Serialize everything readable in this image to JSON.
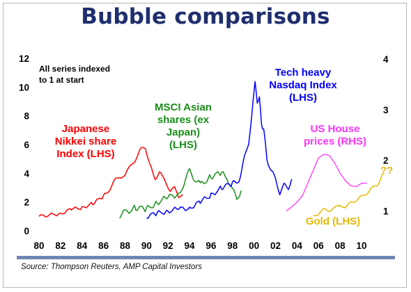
{
  "title": "Bubble comparisons",
  "source": "Source: Thompson Reuters, AMP Capital Investors",
  "colors": {
    "title": "#1f2f6e",
    "nikkei": "#ff0000",
    "msci": "#1a8f1a",
    "nasdaq": "#0000ff",
    "house": "#ff33ff",
    "gold": "#e6b800",
    "rule": "#6f86b5"
  },
  "chart_data": {
    "type": "line",
    "x_ticks": [
      "80",
      "82",
      "84",
      "86",
      "88",
      "90",
      "92",
      "94",
      "96",
      "98",
      "00",
      "02",
      "04",
      "06",
      "08",
      "10"
    ],
    "y_left_ticks": [
      "0",
      "2",
      "4",
      "6",
      "8",
      "10",
      "12"
    ],
    "y_right_ticks": [
      "1",
      "2",
      "3",
      "4"
    ],
    "ylim_left": [
      0,
      12
    ],
    "ylim_right": [
      0.5,
      4
    ],
    "grid": false,
    "note": "All series indexed to 1 at start",
    "question_marks": "??",
    "series": [
      {
        "name": "Japanese Nikkei share Index (LHS)",
        "axis": "left",
        "x": [
          1980,
          1982,
          1983,
          1984,
          1985,
          1986,
          1986.5,
          1987,
          1987.5,
          1988,
          1988.5,
          1989,
          1989.5,
          1989.9,
          1990.3,
          1990.8,
          1991.2,
          1991.7,
          1992.2,
          1992.6,
          1993,
          1993.4
        ],
        "y": [
          1.0,
          1.2,
          1.5,
          1.6,
          1.9,
          2.4,
          2.8,
          3.5,
          3.7,
          3.9,
          4.5,
          5.0,
          5.7,
          5.8,
          4.6,
          3.6,
          4.1,
          3.5,
          2.8,
          3.0,
          2.4,
          2.5
        ]
      },
      {
        "name": "MSCI Asian shares (ex Japan) (LHS)",
        "axis": "left",
        "x": [
          1987.5,
          1988,
          1989,
          1990,
          1991,
          1992,
          1993,
          1993.5,
          1994,
          1994.5,
          1995,
          1996,
          1997,
          1997.5,
          1998,
          1998.4,
          1998.8
        ],
        "y": [
          1.0,
          1.3,
          1.6,
          1.5,
          2.0,
          2.3,
          2.6,
          3.3,
          4.2,
          3.6,
          3.2,
          3.8,
          4.0,
          3.6,
          3.0,
          2.1,
          2.8
        ]
      },
      {
        "name": "Tech heavy Nasdaq Index (LHS)",
        "axis": "left",
        "x": [
          1990,
          1991,
          1992,
          1993,
          1994,
          1995,
          1996,
          1997,
          1998,
          1998.6,
          1999,
          1999.5,
          1999.9,
          2000.1,
          2000.3,
          2000.5,
          2000.7,
          2000.9,
          2001.2,
          2001.6,
          2002,
          2002.4,
          2002.8,
          2003.2,
          2003.5
        ],
        "y": [
          1.0,
          1.2,
          1.4,
          1.5,
          1.6,
          2.0,
          2.5,
          3.0,
          3.3,
          3.5,
          4.8,
          6.0,
          9.0,
          10.3,
          9.0,
          9.2,
          7.5,
          7.0,
          5.0,
          4.2,
          3.6,
          2.6,
          3.2,
          3.0,
          3.6
        ]
      },
      {
        "name": "US House prices (RHS)",
        "axis": "right",
        "x": [
          2003,
          2003.5,
          2004,
          2004.5,
          2005,
          2005.5,
          2006,
          2006.5,
          2007,
          2007.5,
          2008,
          2008.5,
          2009,
          2009.5,
          2010,
          2010.5
        ],
        "y": [
          1.0,
          1.08,
          1.18,
          1.3,
          1.55,
          1.8,
          2.05,
          2.12,
          2.1,
          1.95,
          1.75,
          1.6,
          1.5,
          1.48,
          1.55,
          1.55
        ]
      },
      {
        "name": "Gold (LHS)",
        "axis": "left",
        "x": [
          2005.5,
          2006,
          2006.5,
          2007,
          2007.5,
          2008,
          2008.5,
          2009,
          2009.5,
          2010,
          2010.5,
          2011,
          2011.5,
          2012
        ],
        "y": [
          1.0,
          1.2,
          1.5,
          1.4,
          1.6,
          1.8,
          1.6,
          2.0,
          2.1,
          2.4,
          2.6,
          3.0,
          3.2,
          4.0
        ]
      }
    ]
  }
}
